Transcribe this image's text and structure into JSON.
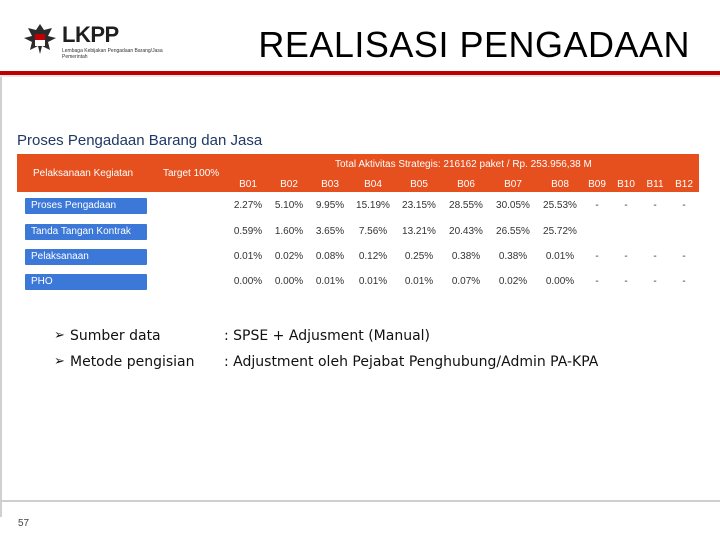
{
  "header": {
    "logo_text": "LKPP",
    "logo_sub": "Lembaga Kebijakan Pengadaan Barang/Jasa Pemerintah",
    "title": "REALISASI PENGADAAN"
  },
  "section_title": "Proses Pengadaan Barang dan Jasa",
  "table": {
    "header_kegiatan": "Pelaksanaan Kegiatan",
    "header_target": "Target 100%",
    "header_total": "Total Aktivitas Strategis: 216162 paket / Rp. 253.956,38 M",
    "columns": [
      "B01",
      "B02",
      "B03",
      "B04",
      "B05",
      "B06",
      "B07",
      "B08",
      "B09",
      "B10",
      "B11",
      "B12"
    ],
    "rows": [
      {
        "label": "Proses Pengadaan",
        "values": [
          "2.27%",
          "5.10%",
          "9.95%",
          "15.19%",
          "23.15%",
          "28.55%",
          "30.05%",
          "25.53%",
          "-",
          "-",
          "-",
          "-"
        ]
      },
      {
        "label": "Tanda Tangan Kontrak",
        "values": [
          "0.59%",
          "1.60%",
          "3.65%",
          "7.56%",
          "13.21%",
          "20.43%",
          "26.55%",
          "25.72%",
          "",
          "",
          "",
          ""
        ]
      },
      {
        "label": "Pelaksanaan",
        "values": [
          "0.01%",
          "0.02%",
          "0.08%",
          "0.12%",
          "0.25%",
          "0.38%",
          "0.38%",
          "0.01%",
          "-",
          "-",
          "-",
          "-"
        ]
      },
      {
        "label": "PHO",
        "values": [
          "0.00%",
          "0.00%",
          "0.01%",
          "0.01%",
          "0.01%",
          "0.07%",
          "0.02%",
          "0.00%",
          "-",
          "-",
          "-",
          "-"
        ]
      }
    ]
  },
  "bullets": [
    {
      "key": "Sumber data",
      "value": ": SPSE + Adjusment (Manual)"
    },
    {
      "key": "Metode pengisian",
      "value": ": Adjustment oleh Pejabat Penghubung/Admin PA-KPA"
    }
  ],
  "page_number": "57",
  "colors": {
    "accent": "#c00000",
    "table_header": "#e6501e",
    "row_label": "#3c78d8"
  }
}
